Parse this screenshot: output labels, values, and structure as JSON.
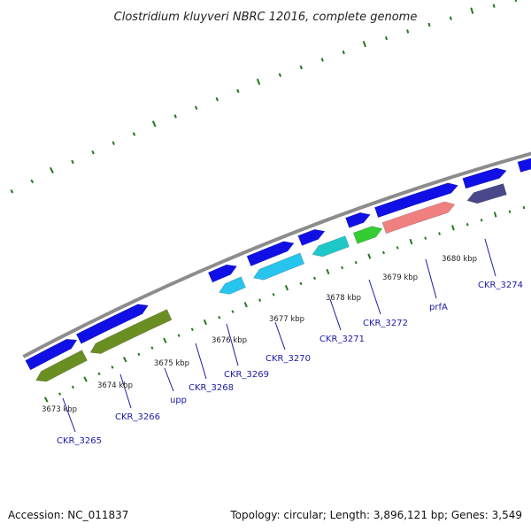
{
  "title": "Clostridium kluyveri NBRC 12016, complete genome",
  "footer": {
    "accession": "Accession: NC_011837",
    "summary": "Topology: circular; Length: 3,896,121 bp; Genes: 3,549"
  },
  "colors": {
    "forward_gene": "#1010e6",
    "backbone": "#8c8c8c",
    "gc_ticks": "#1e7a1e",
    "label": "#1a1aa8",
    "olive": "#6b8e23",
    "cyan": "#27c4ee",
    "teal": "#1ec8c8",
    "green": "#33cc33",
    "salmon": "#f08080",
    "slate": "#48488a",
    "grey": "#c0c0c0"
  },
  "kbp_ticks": [
    "3673 kbp",
    "3674 kbp",
    "3675 kbp",
    "3676 kbp",
    "3677 kbp",
    "3678 kbp",
    "3679 kbp",
    "3680 kbp"
  ],
  "gene_labels": [
    "CKR_3265",
    "CKR_3266",
    "upp",
    "CKR_3268",
    "CKR_3269",
    "CKR_3270",
    "CKR_3271",
    "CKR_3272",
    "prfA",
    "CKR_3274"
  ]
}
